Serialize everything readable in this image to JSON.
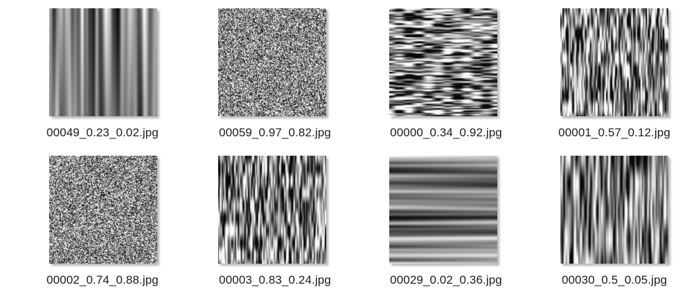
{
  "files": [
    {
      "name": "00049_0.23_0.02.jpg",
      "pattern": "vertical-bands"
    },
    {
      "name": "00059_0.97_0.82.jpg",
      "pattern": "fine-noise"
    },
    {
      "name": "00000_0.34_0.92.jpg",
      "pattern": "horizontal-streaks"
    },
    {
      "name": "00001_0.57_0.12.jpg",
      "pattern": "vertical-streaks"
    },
    {
      "name": "00002_0.74_0.88.jpg",
      "pattern": "fine-noise"
    },
    {
      "name": "00003_0.83_0.24.jpg",
      "pattern": "vertical-streaks"
    },
    {
      "name": "00029_0.02_0.36.jpg",
      "pattern": "horizontal-bands"
    },
    {
      "name": "00030_0.5_0.05.jpg",
      "pattern": "vertical-streaks-wide"
    }
  ]
}
